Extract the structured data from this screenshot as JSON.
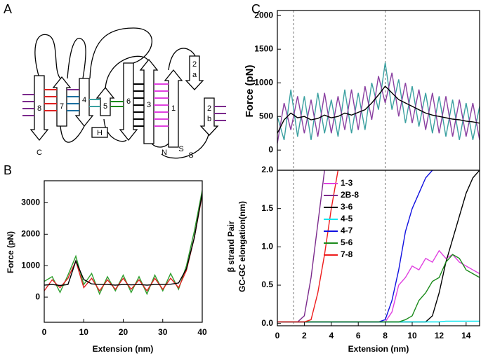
{
  "diagram": {
    "panel": "A",
    "labels": [
      "8",
      "7",
      "4",
      "5",
      "6",
      "3",
      "1",
      "2",
      "a",
      "2",
      "b",
      "H",
      "N",
      "C",
      "S",
      "S"
    ]
  },
  "chart_data": [
    {
      "type": "line",
      "panel": "B",
      "xlabel": "Extension (nm)",
      "ylabel": "Force (pN)",
      "x": [
        0,
        2,
        4,
        6,
        8,
        10,
        12,
        14,
        16,
        18,
        20,
        22,
        24,
        26,
        28,
        30,
        32,
        34,
        36,
        38,
        40
      ],
      "series": [
        {
          "color": "#2e9e2e",
          "values": [
            500,
            650,
            150,
            700,
            1300,
            400,
            750,
            100,
            650,
            200,
            700,
            150,
            650,
            100,
            700,
            200,
            750,
            250,
            1000,
            2100,
            3400
          ]
        },
        {
          "color": "#e02020",
          "values": [
            200,
            550,
            300,
            600,
            1150,
            300,
            600,
            200,
            550,
            250,
            600,
            250,
            550,
            200,
            600,
            250,
            600,
            300,
            850,
            1900,
            3250
          ]
        },
        {
          "color": "#000000",
          "values": [
            380,
            400,
            370,
            400,
            1150,
            560,
            420,
            400,
            400,
            380,
            400,
            390,
            400,
            380,
            400,
            400,
            410,
            450,
            900,
            1900,
            3300
          ]
        }
      ],
      "xlim": [
        0,
        40
      ],
      "xticks": [
        0,
        10,
        20,
        30,
        40
      ],
      "ylim": [
        -800,
        3700
      ],
      "yticks": [
        0,
        1000,
        2000,
        3000
      ]
    },
    {
      "type": "line",
      "panel": "C",
      "ylabel": "Force (pN)",
      "x": [
        0,
        0.5,
        1,
        1.5,
        2,
        2.5,
        3,
        3.5,
        4,
        4.5,
        5,
        5.5,
        6,
        6.5,
        7,
        7.5,
        8,
        8.5,
        9,
        9.5,
        10,
        10.5,
        11,
        11.5,
        12,
        12.5,
        13,
        13.5,
        14,
        14.5,
        15
      ],
      "series": [
        {
          "color": "#3aa0a0",
          "values": [
            500,
            150,
            900,
            200,
            800,
            150,
            850,
            250,
            750,
            200,
            900,
            250,
            850,
            300,
            1000,
            600,
            1300,
            600,
            1050,
            400,
            950,
            350,
            850,
            250,
            800,
            200,
            750,
            150,
            700,
            150,
            650
          ]
        },
        {
          "color": "#8a3fa0",
          "values": [
            100,
            700,
            300,
            800,
            250,
            750,
            200,
            850,
            250,
            800,
            300,
            900,
            300,
            950,
            450,
            1100,
            700,
            1150,
            500,
            1000,
            400,
            900,
            300,
            850,
            250,
            800,
            200,
            750,
            200,
            700,
            150
          ]
        },
        {
          "color": "#000000",
          "values": [
            250,
            450,
            550,
            480,
            500,
            450,
            470,
            520,
            480,
            500,
            550,
            520,
            560,
            600,
            700,
            820,
            950,
            850,
            750,
            700,
            650,
            600,
            550,
            520,
            500,
            480,
            460,
            450,
            430,
            420,
            400
          ]
        }
      ],
      "xlim": [
        0,
        15
      ],
      "ylim": [
        -300,
        2075
      ],
      "yticks": [
        0,
        500,
        1000,
        1500,
        2000
      ],
      "vlines": [
        1.2,
        8
      ]
    },
    {
      "type": "line",
      "xlabel": "Extension (nm)",
      "ylabel": [
        "β strand Pair",
        "GC-GC elongation(nm)"
      ],
      "x": [
        0,
        0.5,
        1,
        1.5,
        2,
        2.5,
        3,
        3.5,
        4,
        4.5,
        5,
        5.5,
        6,
        6.5,
        7,
        7.5,
        8,
        8.5,
        9,
        9.5,
        10,
        10.5,
        11,
        11.5,
        12,
        12.5,
        13,
        13.5,
        14,
        14.5,
        15
      ],
      "series": [
        {
          "name": "1-3",
          "color": "#e040e0",
          "values": [
            0.02,
            0.02,
            0.02,
            0.02,
            0.02,
            0.02,
            0.02,
            0.02,
            0.02,
            0.02,
            0.02,
            0.02,
            0.02,
            0.02,
            0.02,
            0.02,
            0.02,
            0.15,
            0.5,
            0.6,
            0.75,
            0.7,
            0.85,
            0.8,
            0.95,
            0.85,
            0.9,
            0.8,
            0.75,
            0.7,
            0.65
          ]
        },
        {
          "name": "2B-8",
          "color": "#7b2a8c",
          "values": [
            0.02,
            0.02,
            0.02,
            0.02,
            0.1,
            0.6,
            1.3,
            2.0,
            null,
            null,
            null,
            null,
            null,
            null,
            null,
            null,
            null,
            null,
            null,
            null,
            null,
            null,
            null,
            null,
            null,
            null,
            null,
            null,
            null,
            null,
            null
          ]
        },
        {
          "name": "3-6",
          "color": "#000000",
          "values": [
            0.02,
            0.02,
            0.02,
            0.02,
            0.02,
            0.02,
            0.02,
            0.02,
            0.02,
            0.02,
            0.02,
            0.02,
            0.02,
            0.02,
            0.02,
            0.02,
            0.02,
            0.02,
            0.02,
            0.02,
            0.02,
            0.02,
            0.02,
            0.1,
            0.4,
            0.8,
            1.1,
            1.4,
            1.7,
            1.9,
            2.0
          ]
        },
        {
          "name": "4-5",
          "color": "#00e5ee",
          "values": [
            0.02,
            0.02,
            0.02,
            0.02,
            0.02,
            0.02,
            0.02,
            0.02,
            0.02,
            0.02,
            0.02,
            0.02,
            0.02,
            0.02,
            0.02,
            0.02,
            0.02,
            0.02,
            0.02,
            0.02,
            0.02,
            0.02,
            0.02,
            0.02,
            0.02,
            0.03,
            0.03,
            0.03,
            0.03,
            0.03,
            0.03
          ]
        },
        {
          "name": "4-7",
          "color": "#1010e0",
          "values": [
            0.02,
            0.02,
            0.02,
            0.02,
            0.02,
            0.02,
            0.02,
            0.02,
            0.02,
            0.02,
            0.02,
            0.02,
            0.02,
            0.02,
            0.02,
            0.02,
            0.05,
            0.3,
            0.7,
            1.2,
            1.5,
            1.7,
            1.9,
            2.0,
            null,
            null,
            null,
            null,
            null,
            null,
            null
          ]
        },
        {
          "name": "5-6",
          "color": "#1a8a1a",
          "values": [
            0.02,
            0.02,
            0.02,
            0.02,
            0.02,
            0.02,
            0.02,
            0.02,
            0.02,
            0.02,
            0.02,
            0.02,
            0.02,
            0.02,
            0.02,
            0.02,
            0.02,
            0.02,
            0.02,
            0.05,
            0.1,
            0.3,
            0.4,
            0.55,
            0.6,
            0.8,
            0.9,
            0.85,
            0.7,
            0.65,
            0.6
          ]
        },
        {
          "name": "7-8",
          "color": "#ee1c1c",
          "values": [
            0.02,
            0.02,
            0.02,
            0.02,
            0.02,
            0.05,
            0.4,
            0.9,
            1.5,
            2.0,
            null,
            null,
            null,
            null,
            null,
            null,
            null,
            null,
            null,
            null,
            null,
            null,
            null,
            null,
            null,
            null,
            null,
            null,
            null,
            null,
            null
          ]
        }
      ],
      "xlim": [
        0,
        15
      ],
      "xticks": [
        0,
        2,
        4,
        6,
        8,
        10,
        12,
        14
      ],
      "ylim": [
        -0.03,
        2.0
      ],
      "yticks": [
        {
          "value": 0,
          "label": "0.0"
        },
        {
          "value": 0.5,
          "label": "0.5"
        },
        {
          "value": 1,
          "label": "1.0"
        },
        {
          "value": 1.5,
          "label": "1.5"
        },
        {
          "value": 2,
          "label": "2.0"
        }
      ],
      "vlines": [
        1.2,
        8
      ]
    }
  ]
}
